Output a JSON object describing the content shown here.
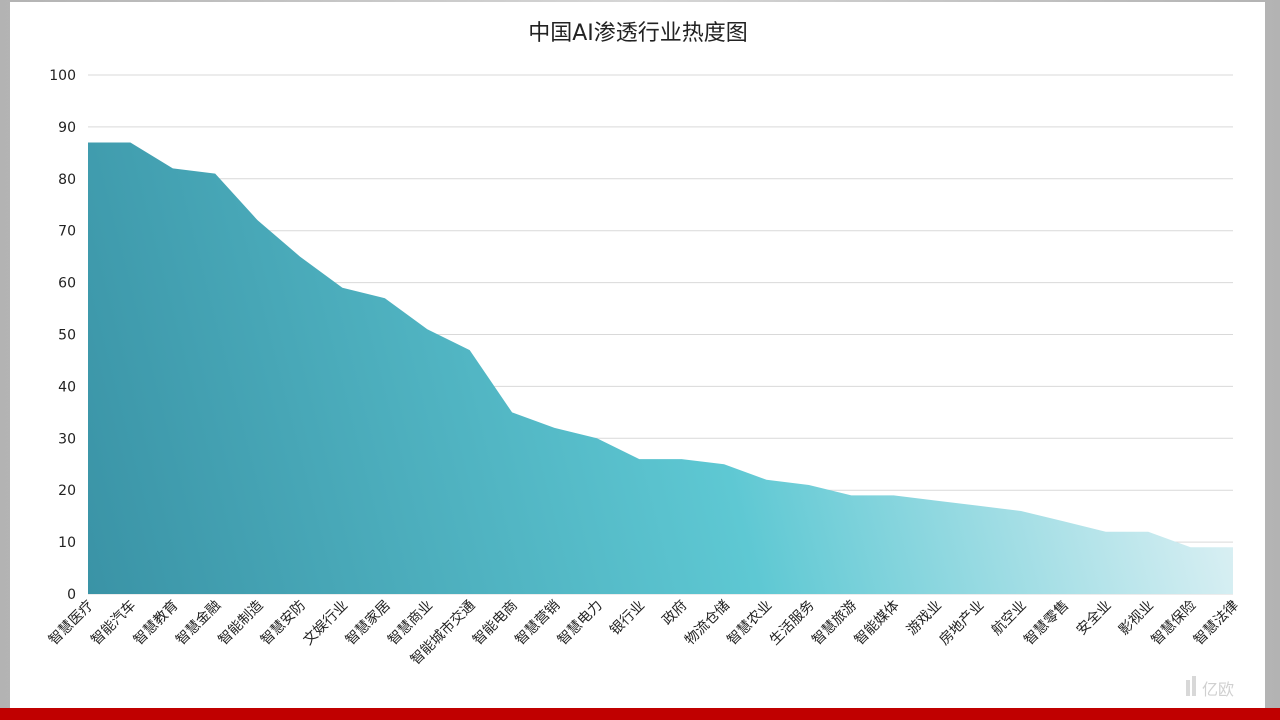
{
  "chart_data": {
    "type": "area",
    "title": "中国AI渗透行业热度图",
    "xlabel": "",
    "ylabel": "",
    "ylim": [
      0,
      100
    ],
    "yticks": [
      0,
      10,
      20,
      30,
      40,
      50,
      60,
      70,
      80,
      90,
      100
    ],
    "grid": true,
    "categories": [
      "智慧医疗",
      "智能汽车",
      "智慧教育",
      "智慧金融",
      "智能制造",
      "智慧安防",
      "文娱行业",
      "智慧家居",
      "智慧商业",
      "智能城市交通",
      "智能电商",
      "智慧营销",
      "智慧电力",
      "银行业",
      "政府",
      "物流仓储",
      "智慧农业",
      "生活服务",
      "智慧旅游",
      "智能媒体",
      "游戏业",
      "房地产业",
      "航空业",
      "智慧零售",
      "安全业",
      "影视业",
      "智慧保险",
      "智慧法律"
    ],
    "series": [
      {
        "values": [
          87,
          87,
          82,
          81,
          72,
          65,
          59,
          57,
          51,
          47,
          35,
          32,
          30,
          26,
          26,
          25,
          22,
          21,
          19,
          19,
          18,
          17,
          16,
          14,
          12,
          12,
          9,
          9
        ]
      }
    ],
    "colors": {
      "dark": "#3a93a6",
      "mid": "#5ec8d3",
      "light": "#e8f4f7",
      "grid": "#d9d9d9"
    }
  },
  "watermark": "亿欧"
}
